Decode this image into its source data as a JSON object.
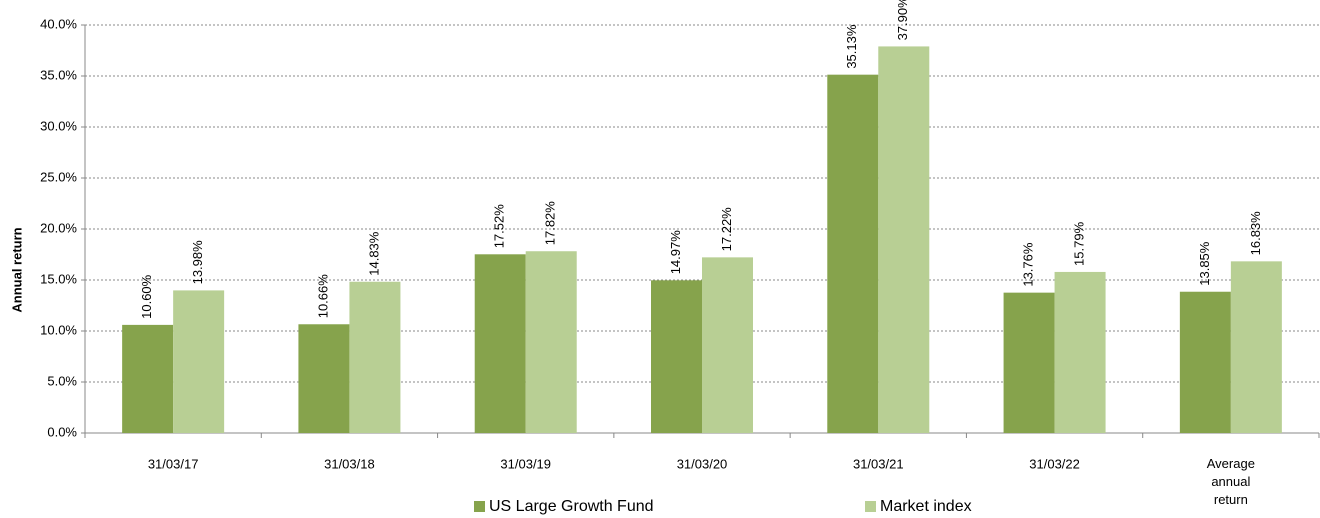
{
  "chart_data": {
    "type": "bar",
    "categories": [
      "31/03/17",
      "31/03/18",
      "31/03/19",
      "31/03/20",
      "31/03/21",
      "31/03/22",
      "Average annual return"
    ],
    "series": [
      {
        "name": "US Large Growth Fund",
        "color": "#86a34c",
        "values": [
          10.6,
          10.66,
          17.52,
          14.97,
          35.13,
          13.76,
          13.85
        ],
        "value_labels": [
          "10.60%",
          "10.66%",
          "17.52%",
          "14.97%",
          "35.13%",
          "13.76%",
          "13.85%"
        ]
      },
      {
        "name": "Market index",
        "color": "#b8cf94",
        "values": [
          13.98,
          14.83,
          17.82,
          17.22,
          37.9,
          15.79,
          16.83
        ],
        "value_labels": [
          "13.98%",
          "14.83%",
          "17.82%",
          "17.22%",
          "37.90%",
          "15.79%",
          "16.83%"
        ]
      }
    ],
    "ylabel": "Annual return",
    "ylim": [
      0,
      40
    ],
    "yticks": [
      {
        "value": 0,
        "label": "0.0%"
      },
      {
        "value": 5,
        "label": "5.0%"
      },
      {
        "value": 10,
        "label": "10.0%"
      },
      {
        "value": 15,
        "label": "15.0%"
      },
      {
        "value": 20,
        "label": "20.0%"
      },
      {
        "value": 25,
        "label": "25.0%"
      },
      {
        "value": 30,
        "label": "30.0%"
      },
      {
        "value": 35,
        "label": "35.0%"
      },
      {
        "value": 40,
        "label": "40.0%"
      }
    ],
    "grid": true,
    "legend": "bottom"
  }
}
